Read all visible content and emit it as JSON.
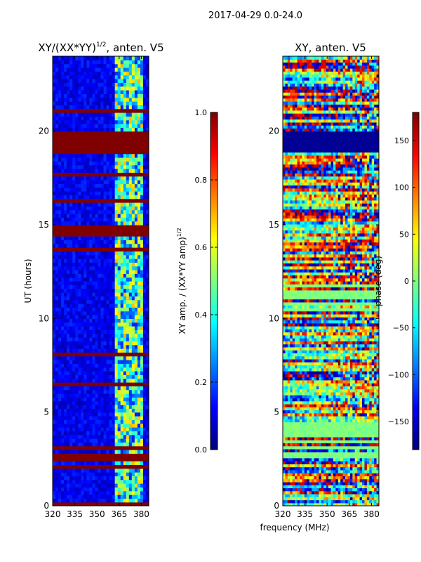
{
  "figure_title": "2017-04-29 0.0-24.0",
  "shared_xlabel": "frequency (MHz)",
  "left_panel": {
    "title_main": "XY/(XX*YY)",
    "title_sup": "1/2",
    "title_tail": ", anten. V5"
  },
  "right_panel": {
    "title": "XY, anten. V5"
  },
  "colorbar_left": {
    "label_main": "XY amp. / (XX*YY amp)",
    "label_sup": "1/2"
  },
  "colorbar_right": {
    "label": "phase (deg)"
  },
  "chart_data": [
    {
      "type": "heatmap",
      "name": "normalized_amplitude",
      "title": "XY/(XX*YY)^1/2, anten. V5",
      "xlabel": "frequency (MHz)",
      "ylabel": "UT (hours)",
      "xlim": [
        320,
        385
      ],
      "ylim": [
        0,
        24
      ],
      "xticks": [
        320,
        335,
        350,
        365,
        380
      ],
      "yticks": [
        0,
        5,
        10,
        15,
        20
      ],
      "colormap": "jet",
      "clim": [
        0.0,
        1.0
      ],
      "colorbar_ticks": [
        "0.0",
        "0.2",
        "0.4",
        "0.6",
        "0.8",
        "1.0"
      ],
      "bright_band_mhz": [
        363,
        381
      ],
      "saturated_hours": [
        [
          18.8,
          20.0
        ],
        [
          17.6,
          17.8
        ],
        [
          14.4,
          14.9
        ],
        [
          13.6,
          13.8
        ],
        [
          21.0,
          21.2
        ],
        [
          0.0,
          0.15
        ]
      ]
    },
    {
      "type": "heatmap",
      "name": "xy_phase",
      "title": "XY, anten. V5",
      "xlabel": "frequency (MHz)",
      "ylabel": "",
      "xlim": [
        320,
        385
      ],
      "ylim": [
        0,
        24
      ],
      "xticks": [
        320,
        335,
        350,
        365,
        380
      ],
      "yticks": [
        0,
        5,
        10,
        15,
        20
      ],
      "colormap": "jet",
      "clim": [
        -180,
        180
      ],
      "colorbar_ticks": [
        "150",
        "100",
        "50",
        "0",
        "−50",
        "−100",
        "−150"
      ],
      "colorbar_tick_values": [
        150,
        100,
        50,
        0,
        -50,
        -100,
        -150
      ],
      "flat_phase_hours": [
        [
          18.8,
          20.0
        ]
      ],
      "flat_band_hours": [
        [
          2.5,
          4.5
        ],
        [
          10.3,
          11.8
        ]
      ]
    }
  ]
}
